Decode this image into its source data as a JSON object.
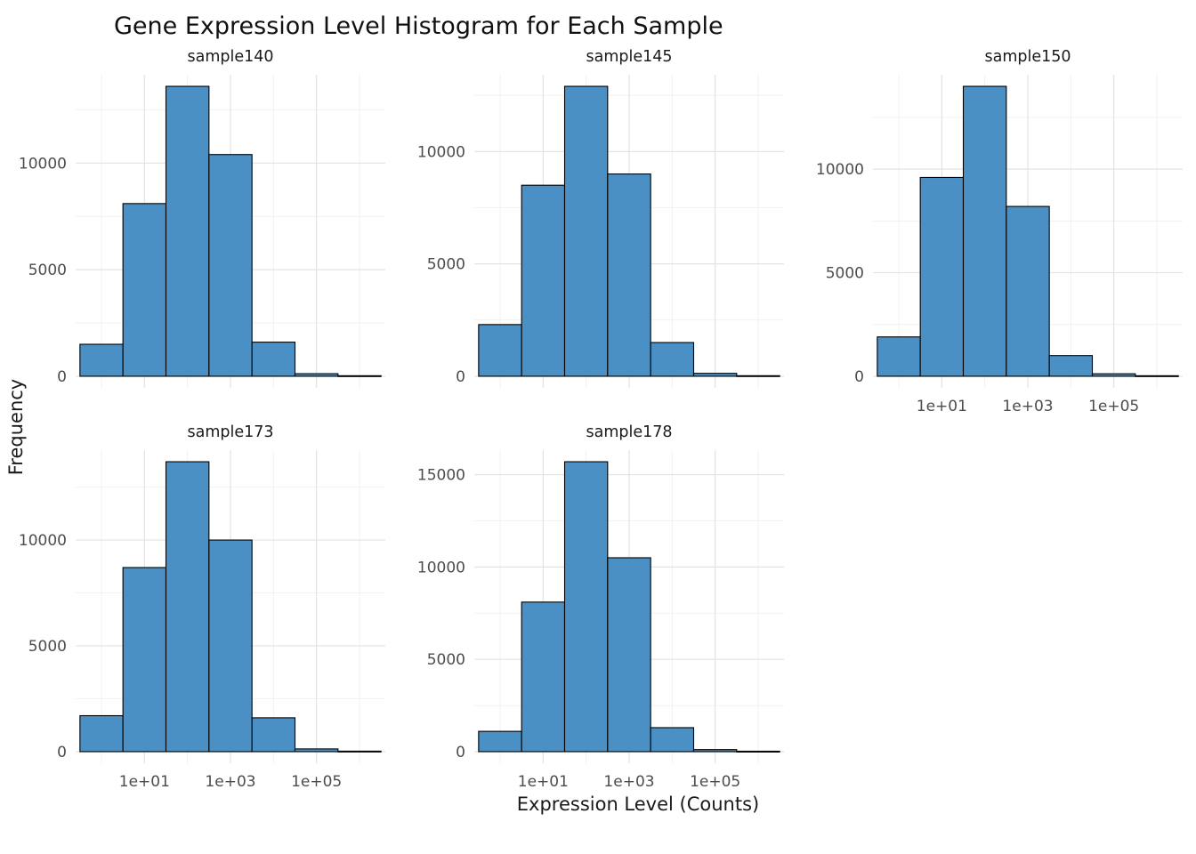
{
  "title": "Gene Expression Level Histogram for Each Sample",
  "style": {
    "bar_fill": "#4a90c4",
    "bar_stroke": "#000000",
    "grid_major": "#e3e3e3",
    "grid_minor": "#f1f1f1",
    "tick_text_color": "#4d4d4d"
  },
  "chart_data": {
    "type": "bar",
    "subtype": "faceted-histogram",
    "title": "Gene Expression Level Histogram for Each Sample",
    "xlabel": "Expression Level (Counts)",
    "ylabel": "Frequency",
    "x_scale": "log10",
    "x_domain_log10": [
      -0.6,
      6.6
    ],
    "x_tick_positions_log10": [
      1,
      3,
      5
    ],
    "x_minor_positions_log10": [
      0,
      2,
      4,
      6
    ],
    "x_tick_labels": [
      "1e+01",
      "1e+03",
      "1e+05"
    ],
    "bin_centers_log10": [
      0,
      1,
      2,
      3,
      4,
      5,
      6
    ],
    "grid": "on",
    "legend": "none",
    "panels": [
      {
        "name": "sample140",
        "values": [
          1500,
          8100,
          13600,
          10400,
          1600,
          120,
          25
        ],
        "y_ticks": [
          0,
          5000,
          10000
        ],
        "show_x_axis": false
      },
      {
        "name": "sample145",
        "values": [
          2300,
          8500,
          12900,
          9000,
          1500,
          130,
          25
        ],
        "y_ticks": [
          0,
          5000,
          10000
        ],
        "show_x_axis": false
      },
      {
        "name": "sample150",
        "values": [
          1900,
          9600,
          14000,
          8200,
          1000,
          120,
          25
        ],
        "y_ticks": [
          0,
          5000,
          10000
        ],
        "show_x_axis": true
      },
      {
        "name": "sample173",
        "values": [
          1700,
          8700,
          13700,
          10000,
          1600,
          130,
          25
        ],
        "y_ticks": [
          0,
          5000,
          10000
        ],
        "show_x_axis": true
      },
      {
        "name": "sample178",
        "values": [
          1100,
          8100,
          15700,
          10500,
          1300,
          110,
          25
        ],
        "y_ticks": [
          0,
          5000,
          10000,
          15000
        ],
        "show_x_axis": true
      }
    ]
  }
}
